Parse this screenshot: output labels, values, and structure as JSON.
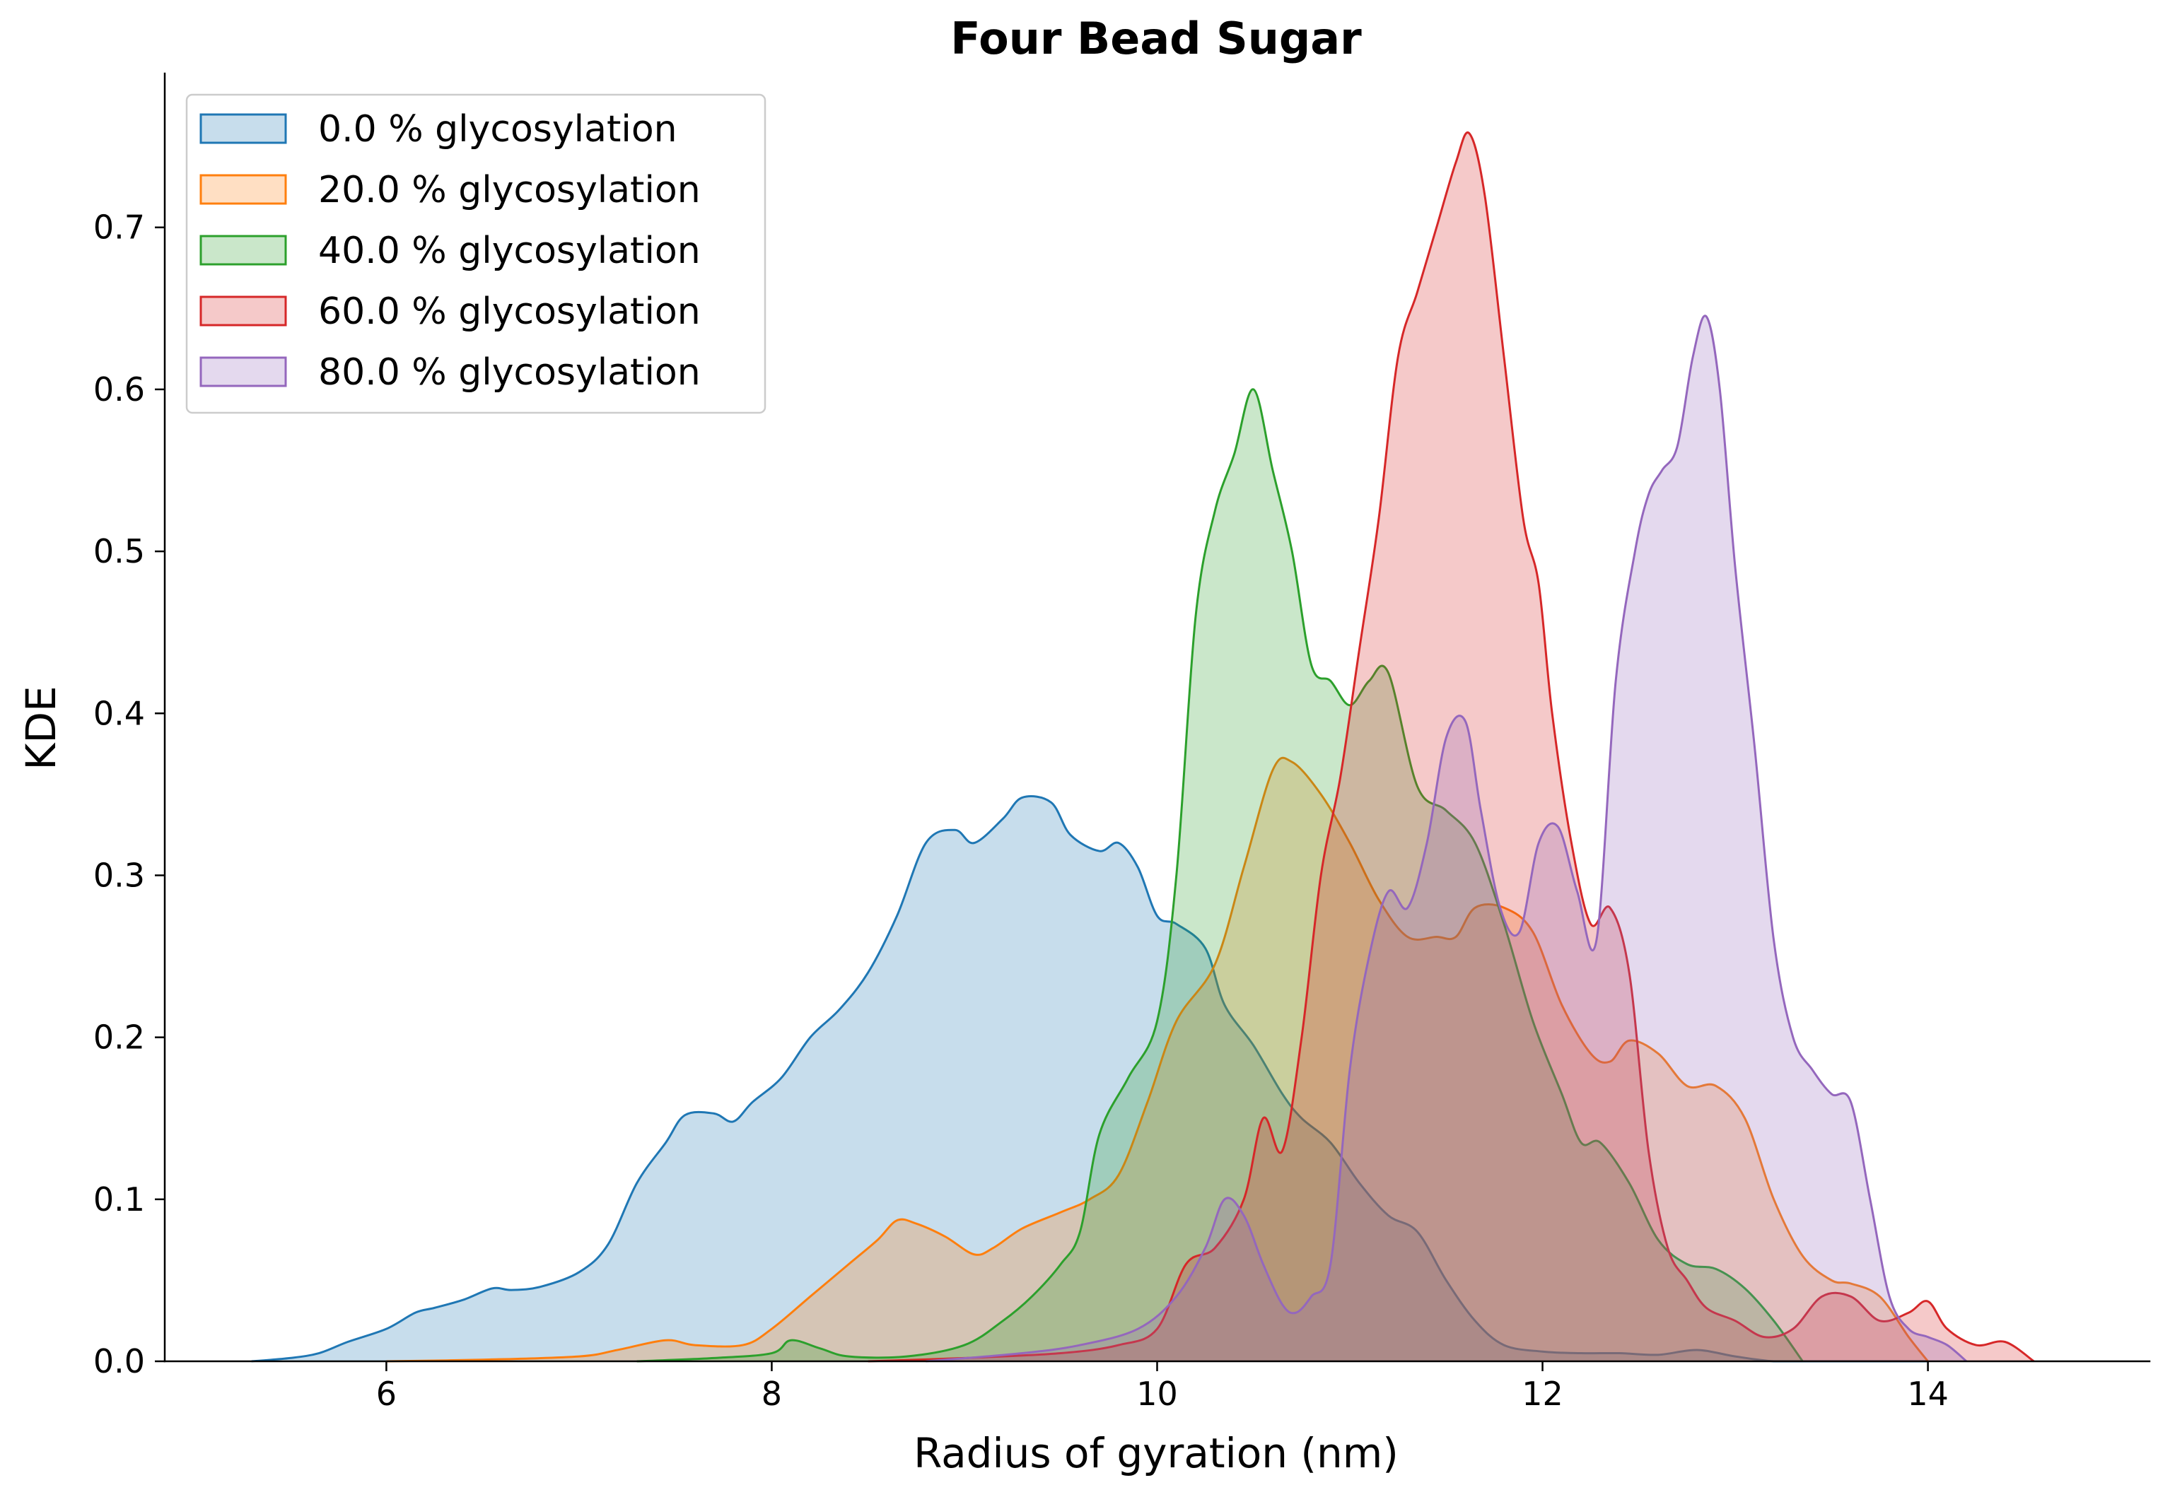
{
  "chart_data": {
    "type": "area",
    "title": "Four Bead Sugar",
    "xlabel": "Radius of gyration (nm)",
    "ylabel": "KDE",
    "xlim": [
      4.85,
      15.15
    ],
    "ylim": [
      0.0,
      0.795
    ],
    "xticks": [
      6,
      8,
      10,
      12,
      14
    ],
    "xtick_labels": [
      "6",
      "8",
      "10",
      "12",
      "14"
    ],
    "yticks": [
      0.0,
      0.1,
      0.2,
      0.3,
      0.4,
      0.5,
      0.6,
      0.7
    ],
    "ytick_labels": [
      "0.0",
      "0.1",
      "0.2",
      "0.3",
      "0.4",
      "0.5",
      "0.6",
      "0.7"
    ],
    "grid": false,
    "legend_position": "top-left",
    "series": [
      {
        "name": "0.0 % glycosylation",
        "color": "#1f77b4",
        "x": [
          5.3,
          5.5,
          5.65,
          5.8,
          6.0,
          6.15,
          6.25,
          6.4,
          6.55,
          6.65,
          6.8,
          7.0,
          7.15,
          7.3,
          7.45,
          7.55,
          7.7,
          7.8,
          7.9,
          8.05,
          8.2,
          8.35,
          8.5,
          8.65,
          8.8,
          8.95,
          9.05,
          9.2,
          9.3,
          9.45,
          9.55,
          9.7,
          9.8,
          9.9,
          10.0,
          10.1,
          10.25,
          10.35,
          10.5,
          10.65,
          10.75,
          10.9,
          11.05,
          11.2,
          11.35,
          11.5,
          11.65,
          11.8,
          12.0,
          12.2,
          12.4,
          12.6,
          12.8,
          13.0,
          13.2,
          13.4,
          13.6,
          13.8,
          14.0
        ],
        "y": [
          0.0,
          0.002,
          0.005,
          0.012,
          0.02,
          0.03,
          0.033,
          0.038,
          0.045,
          0.044,
          0.046,
          0.055,
          0.072,
          0.11,
          0.135,
          0.152,
          0.153,
          0.148,
          0.16,
          0.175,
          0.2,
          0.217,
          0.24,
          0.275,
          0.32,
          0.328,
          0.32,
          0.335,
          0.348,
          0.345,
          0.325,
          0.315,
          0.32,
          0.305,
          0.275,
          0.27,
          0.255,
          0.22,
          0.195,
          0.165,
          0.15,
          0.135,
          0.11,
          0.09,
          0.08,
          0.05,
          0.025,
          0.01,
          0.006,
          0.005,
          0.005,
          0.004,
          0.007,
          0.003,
          0.0,
          0.0,
          0.0,
          0.0,
          0.0
        ]
      },
      {
        "name": "20.0 % glycosylation",
        "color": "#ff7f0e",
        "x": [
          6.0,
          6.5,
          7.0,
          7.2,
          7.45,
          7.6,
          7.85,
          8.0,
          8.2,
          8.4,
          8.55,
          8.65,
          8.75,
          8.9,
          9.05,
          9.15,
          9.3,
          9.5,
          9.65,
          9.8,
          9.95,
          10.1,
          10.3,
          10.45,
          10.6,
          10.7,
          10.85,
          11.0,
          11.15,
          11.3,
          11.45,
          11.55,
          11.65,
          11.8,
          11.95,
          12.1,
          12.25,
          12.35,
          12.45,
          12.6,
          12.75,
          12.9,
          13.05,
          13.2,
          13.35,
          13.5,
          13.6,
          13.75,
          13.9,
          14.0
        ],
        "y": [
          0.0,
          0.001,
          0.003,
          0.007,
          0.013,
          0.01,
          0.01,
          0.02,
          0.04,
          0.06,
          0.075,
          0.087,
          0.085,
          0.077,
          0.066,
          0.07,
          0.082,
          0.092,
          0.1,
          0.115,
          0.16,
          0.21,
          0.245,
          0.305,
          0.365,
          0.37,
          0.35,
          0.32,
          0.285,
          0.262,
          0.262,
          0.262,
          0.28,
          0.28,
          0.265,
          0.22,
          0.19,
          0.185,
          0.198,
          0.19,
          0.17,
          0.17,
          0.15,
          0.1,
          0.065,
          0.05,
          0.048,
          0.04,
          0.015,
          0.0
        ]
      },
      {
        "name": "40.0 % glycosylation",
        "color": "#2ca02c",
        "x": [
          7.3,
          7.7,
          8.0,
          8.1,
          8.25,
          8.4,
          8.7,
          9.0,
          9.2,
          9.35,
          9.5,
          9.6,
          9.7,
          9.85,
          10.0,
          10.1,
          10.2,
          10.3,
          10.4,
          10.5,
          10.6,
          10.7,
          10.8,
          10.9,
          11.0,
          11.1,
          11.2,
          11.35,
          11.5,
          11.65,
          11.8,
          11.95,
          12.1,
          12.2,
          12.3,
          12.45,
          12.6,
          12.75,
          12.9,
          13.05,
          13.2,
          13.35
        ],
        "y": [
          0.0,
          0.002,
          0.005,
          0.013,
          0.008,
          0.003,
          0.003,
          0.01,
          0.025,
          0.04,
          0.06,
          0.08,
          0.14,
          0.175,
          0.21,
          0.3,
          0.46,
          0.525,
          0.56,
          0.6,
          0.55,
          0.5,
          0.43,
          0.42,
          0.405,
          0.42,
          0.425,
          0.355,
          0.34,
          0.32,
          0.27,
          0.21,
          0.165,
          0.135,
          0.135,
          0.11,
          0.075,
          0.06,
          0.057,
          0.045,
          0.025,
          0.0
        ]
      },
      {
        "name": "60.0 % glycosylation",
        "color": "#d62728",
        "x": [
          8.5,
          9.0,
          9.5,
          9.8,
          10.0,
          10.15,
          10.3,
          10.45,
          10.55,
          10.65,
          10.75,
          10.85,
          10.95,
          11.05,
          11.15,
          11.25,
          11.35,
          11.45,
          11.55,
          11.62,
          11.7,
          11.8,
          11.9,
          11.98,
          12.05,
          12.15,
          12.25,
          12.35,
          12.45,
          12.55,
          12.65,
          12.75,
          12.85,
          13.0,
          13.15,
          13.3,
          13.45,
          13.6,
          13.75,
          13.9,
          14.0,
          14.1,
          14.25,
          14.4,
          14.55
        ],
        "y": [
          0.0,
          0.002,
          0.005,
          0.01,
          0.02,
          0.06,
          0.07,
          0.1,
          0.15,
          0.13,
          0.2,
          0.3,
          0.36,
          0.44,
          0.52,
          0.62,
          0.66,
          0.7,
          0.74,
          0.758,
          0.72,
          0.62,
          0.52,
          0.48,
          0.4,
          0.32,
          0.27,
          0.28,
          0.24,
          0.13,
          0.07,
          0.05,
          0.033,
          0.025,
          0.015,
          0.02,
          0.04,
          0.04,
          0.025,
          0.03,
          0.037,
          0.02,
          0.01,
          0.012,
          0.0
        ]
      },
      {
        "name": "80.0 % glycosylation",
        "color": "#9467bd",
        "x": [
          8.8,
          9.3,
          9.6,
          9.9,
          10.1,
          10.25,
          10.35,
          10.45,
          10.55,
          10.65,
          10.72,
          10.8,
          10.9,
          11.0,
          11.1,
          11.2,
          11.3,
          11.4,
          11.5,
          11.6,
          11.68,
          11.78,
          11.88,
          11.98,
          12.08,
          12.18,
          12.28,
          12.38,
          12.48,
          12.55,
          12.62,
          12.7,
          12.78,
          12.85,
          12.92,
          13.0,
          13.1,
          13.2,
          13.3,
          13.4,
          13.5,
          13.6,
          13.7,
          13.8,
          13.9,
          14.0,
          14.1,
          14.2
        ],
        "y": [
          0.0,
          0.005,
          0.01,
          0.02,
          0.04,
          0.07,
          0.1,
          0.09,
          0.06,
          0.035,
          0.03,
          0.04,
          0.06,
          0.18,
          0.25,
          0.29,
          0.28,
          0.32,
          0.385,
          0.395,
          0.34,
          0.28,
          0.265,
          0.32,
          0.33,
          0.29,
          0.26,
          0.42,
          0.5,
          0.535,
          0.55,
          0.565,
          0.62,
          0.645,
          0.6,
          0.49,
          0.38,
          0.26,
          0.2,
          0.18,
          0.165,
          0.16,
          0.1,
          0.04,
          0.02,
          0.015,
          0.01,
          0.0
        ]
      }
    ]
  }
}
